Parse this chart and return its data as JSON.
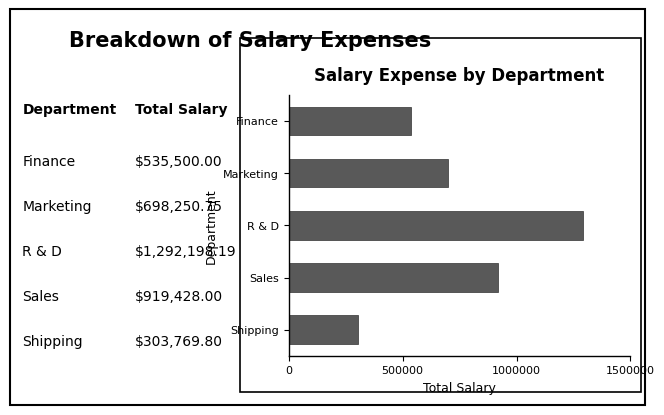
{
  "title": "Breakdown of Salary Expenses",
  "table_header_dept": "Department",
  "table_header_salary": "Total Salary",
  "departments": [
    "Finance",
    "Marketing",
    "R & D",
    "Sales",
    "Shipping"
  ],
  "salaries": [
    535500.0,
    698250.75,
    1292198.19,
    919428.0,
    303769.8
  ],
  "salary_labels": [
    "$535,500.00",
    "$698,250.75",
    "$1,292,198.19",
    "$919,428.00",
    "$303,769.80"
  ],
  "chart_title": "Salary Expense by Department",
  "chart_xlabel": "Total Salary",
  "chart_ylabel": "Department",
  "bar_color": "#595959",
  "xlim": [
    0,
    1500000
  ],
  "xticks": [
    0,
    500000,
    1000000,
    1500000
  ],
  "xtick_labels": [
    "0",
    "500000",
    "1000000",
    "1500000"
  ],
  "background_color": "#ffffff",
  "title_fontsize": 15,
  "table_header_fontsize": 10,
  "table_data_fontsize": 10,
  "chart_title_fontsize": 12,
  "chart_label_fontsize": 9,
  "chart_tick_fontsize": 8
}
